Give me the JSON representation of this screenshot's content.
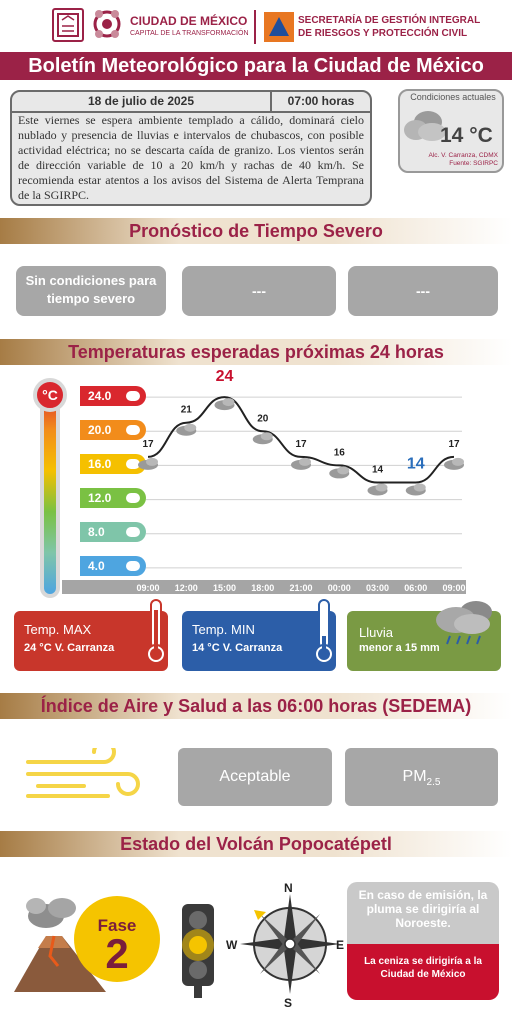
{
  "header": {
    "cdmx_title": "CIUDAD DE MÉXICO",
    "cdmx_subtitle": "CAPITAL DE LA TRANSFORMACIÓN",
    "secretaria_line1": "SECRETARÍA DE GESTIÓN INTEGRAL",
    "secretaria_line2": "DE RIESGOS Y PROTECCIÓN CIVIL"
  },
  "title": "Boletín Meteorológico para la Ciudad de México",
  "bulletin": {
    "date": "18 de julio de 2025",
    "time": "07:00 horas",
    "text": "Este viernes se espera ambiente templado a cálido, dominará cielo nublado y presencia de lluvias e intervalos de chubascos, con posible actividad eléctrica; no se descarta caída de granizo. Los vientos serán de dirección variable de 10 a 20 km/h y rachas de 40 km/h. Se recomienda estar atentos a los avisos del Sistema de Alerta Temprana de la SGIRPC."
  },
  "current": {
    "label": "Condiciones actuales",
    "temp": "14 °C",
    "location": "Alc. V. Carranza, CDMX",
    "source": "Fuente: SGIRPC"
  },
  "severe": {
    "title": "Pronóstico de Tiempo Severo",
    "box1": "Sin condiciones para tiempo severo",
    "box2": "---",
    "box3": "---"
  },
  "temps_section": {
    "title": "Temperaturas esperadas próximas 24 horas",
    "unit": "°C",
    "scale": [
      "24.0",
      "20.0",
      "16.0",
      "12.0",
      "8.0",
      "4.0"
    ],
    "scale_colors": [
      "#d9272e",
      "#f28c1b",
      "#f5c000",
      "#7ac143",
      "#7fc5a9",
      "#4ea5e0"
    ]
  },
  "chart_data": {
    "type": "line",
    "x": [
      "09:00",
      "12:00",
      "15:00",
      "18:00",
      "21:00",
      "00:00",
      "03:00",
      "06:00",
      "09:00"
    ],
    "values": [
      17,
      21,
      24,
      20,
      17,
      16,
      14,
      14,
      17
    ],
    "max_label_color": "#c8102e",
    "min_label_color": "#2a6ebb",
    "ylim": [
      2,
      26
    ],
    "grid": true
  },
  "panels": {
    "max_title": "Temp. MAX",
    "max_value": "24 °C  V. Carranza",
    "min_title": "Temp. MIN",
    "min_value": "14 °C  V. Carranza",
    "rain_title": "Lluvia",
    "rain_value": "menor a 15 mm"
  },
  "air": {
    "title": "Índice de Aire y Salud a las 06:00 horas (SEDEMA)",
    "quality": "Aceptable",
    "pollutant": "PM",
    "pollutant_sub": "2.5"
  },
  "volcano": {
    "title": "Estado del Volcán Popocatépetl",
    "phase_label": "Fase",
    "phase_number": "2",
    "compass_n": "N",
    "compass_s": "S",
    "compass_e": "E",
    "compass_w": "W",
    "plume_text": "En caso de emisión, la pluma se dirigiría al Noroeste.",
    "ash_text": "La ceniza se dirigiría a la Ciudad de México"
  }
}
